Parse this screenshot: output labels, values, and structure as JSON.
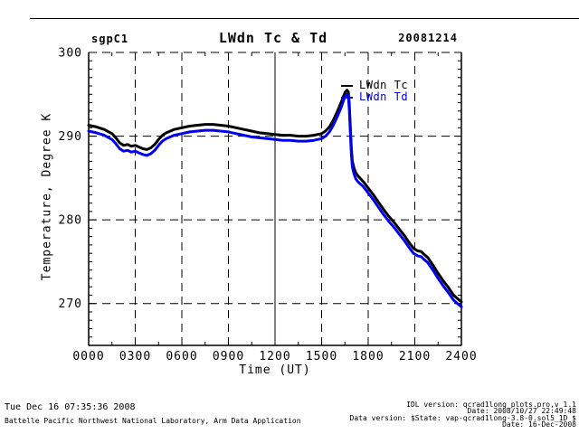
{
  "chart_data": {
    "type": "line",
    "site": "sgpC1",
    "title": "LWdn Tc & Td",
    "date_label": "20081214",
    "xlabel": "Time (UT)",
    "ylabel": "Temperature, Degree K",
    "xlim": [
      0,
      1440
    ],
    "ylim": [
      265,
      300
    ],
    "x_tick_labels": [
      "0000",
      "0300",
      "0600",
      "0900",
      "1200",
      "1500",
      "1800",
      "2100",
      "2400"
    ],
    "x_tick_minutes": [
      0,
      180,
      360,
      540,
      720,
      900,
      1080,
      1260,
      1440
    ],
    "y_ticks": [
      270,
      280,
      290,
      300
    ],
    "x_minor_step": 90,
    "y_minor_step": 1,
    "grid": "dashed",
    "solid_x_gridlines": [
      720
    ],
    "legend_position": "inside-top-right",
    "series": [
      {
        "name": "LWdn Tc",
        "color": "#000000",
        "points": [
          [
            0,
            291.3
          ],
          [
            30,
            291.1
          ],
          [
            60,
            290.8
          ],
          [
            90,
            290.3
          ],
          [
            105,
            289.8
          ],
          [
            120,
            289.2
          ],
          [
            135,
            288.9
          ],
          [
            150,
            289.0
          ],
          [
            165,
            288.8
          ],
          [
            180,
            288.9
          ],
          [
            195,
            288.7
          ],
          [
            210,
            288.5
          ],
          [
            225,
            288.4
          ],
          [
            240,
            288.6
          ],
          [
            255,
            289.0
          ],
          [
            270,
            289.6
          ],
          [
            285,
            290.1
          ],
          [
            300,
            290.4
          ],
          [
            330,
            290.8
          ],
          [
            360,
            291.0
          ],
          [
            390,
            291.2
          ],
          [
            420,
            291.3
          ],
          [
            450,
            291.4
          ],
          [
            480,
            291.4
          ],
          [
            510,
            291.3
          ],
          [
            540,
            291.2
          ],
          [
            570,
            291.0
          ],
          [
            600,
            290.8
          ],
          [
            630,
            290.6
          ],
          [
            660,
            290.4
          ],
          [
            690,
            290.3
          ],
          [
            720,
            290.2
          ],
          [
            750,
            290.1
          ],
          [
            780,
            290.1
          ],
          [
            810,
            290.0
          ],
          [
            840,
            290.0
          ],
          [
            870,
            290.1
          ],
          [
            900,
            290.3
          ],
          [
            915,
            290.6
          ],
          [
            930,
            291.1
          ],
          [
            945,
            291.9
          ],
          [
            960,
            292.9
          ],
          [
            975,
            294.0
          ],
          [
            985,
            294.8
          ],
          [
            992,
            295.3
          ],
          [
            998,
            295.5
          ],
          [
            1003,
            295.3
          ],
          [
            1007,
            293.8
          ],
          [
            1011,
            291.0
          ],
          [
            1015,
            288.5
          ],
          [
            1019,
            287.0
          ],
          [
            1025,
            286.2
          ],
          [
            1032,
            285.6
          ],
          [
            1042,
            285.2
          ],
          [
            1060,
            284.6
          ],
          [
            1080,
            283.8
          ],
          [
            1100,
            283.0
          ],
          [
            1120,
            282.1
          ],
          [
            1140,
            281.2
          ],
          [
            1160,
            280.4
          ],
          [
            1180,
            279.7
          ],
          [
            1200,
            278.9
          ],
          [
            1220,
            278.1
          ],
          [
            1240,
            277.2
          ],
          [
            1255,
            276.6
          ],
          [
            1270,
            276.3
          ],
          [
            1285,
            276.2
          ],
          [
            1295,
            275.9
          ],
          [
            1310,
            275.5
          ],
          [
            1330,
            274.6
          ],
          [
            1350,
            273.6
          ],
          [
            1370,
            272.7
          ],
          [
            1390,
            271.9
          ],
          [
            1410,
            271.0
          ],
          [
            1425,
            270.6
          ],
          [
            1440,
            270.2
          ]
        ]
      },
      {
        "name": "LWdn Td",
        "color": "#0000ee",
        "points": [
          [
            0,
            290.6
          ],
          [
            30,
            290.4
          ],
          [
            60,
            290.1
          ],
          [
            90,
            289.6
          ],
          [
            105,
            289.1
          ],
          [
            120,
            288.5
          ],
          [
            135,
            288.2
          ],
          [
            150,
            288.3
          ],
          [
            165,
            288.1
          ],
          [
            180,
            288.2
          ],
          [
            195,
            288.0
          ],
          [
            210,
            287.8
          ],
          [
            225,
            287.7
          ],
          [
            240,
            287.9
          ],
          [
            255,
            288.3
          ],
          [
            270,
            288.9
          ],
          [
            285,
            289.4
          ],
          [
            300,
            289.7
          ],
          [
            330,
            290.1
          ],
          [
            360,
            290.3
          ],
          [
            390,
            290.5
          ],
          [
            420,
            290.6
          ],
          [
            450,
            290.7
          ],
          [
            480,
            290.7
          ],
          [
            510,
            290.6
          ],
          [
            540,
            290.5
          ],
          [
            570,
            290.3
          ],
          [
            600,
            290.1
          ],
          [
            630,
            289.9
          ],
          [
            660,
            289.8
          ],
          [
            690,
            289.7
          ],
          [
            720,
            289.6
          ],
          [
            750,
            289.5
          ],
          [
            780,
            289.5
          ],
          [
            810,
            289.4
          ],
          [
            840,
            289.4
          ],
          [
            870,
            289.5
          ],
          [
            900,
            289.7
          ],
          [
            915,
            290.0
          ],
          [
            930,
            290.5
          ],
          [
            945,
            291.3
          ],
          [
            960,
            292.3
          ],
          [
            975,
            293.4
          ],
          [
            985,
            294.3
          ],
          [
            992,
            294.8
          ],
          [
            998,
            295.0
          ],
          [
            1003,
            294.8
          ],
          [
            1007,
            293.2
          ],
          [
            1011,
            290.3
          ],
          [
            1015,
            287.8
          ],
          [
            1019,
            286.3
          ],
          [
            1025,
            285.5
          ],
          [
            1032,
            284.9
          ],
          [
            1042,
            284.5
          ],
          [
            1060,
            284.0
          ],
          [
            1080,
            283.2
          ],
          [
            1100,
            282.4
          ],
          [
            1120,
            281.5
          ],
          [
            1140,
            280.6
          ],
          [
            1160,
            279.8
          ],
          [
            1180,
            279.1
          ],
          [
            1200,
            278.3
          ],
          [
            1220,
            277.5
          ],
          [
            1240,
            276.6
          ],
          [
            1255,
            276.0
          ],
          [
            1270,
            275.7
          ],
          [
            1285,
            275.6
          ],
          [
            1295,
            275.3
          ],
          [
            1310,
            274.9
          ],
          [
            1330,
            274.0
          ],
          [
            1350,
            273.0
          ],
          [
            1370,
            272.1
          ],
          [
            1390,
            271.3
          ],
          [
            1410,
            270.4
          ],
          [
            1425,
            270.0
          ],
          [
            1440,
            269.6
          ]
        ]
      }
    ]
  },
  "footer": {
    "left_line1": "Tue Dec 16 07:35:36 2008",
    "left_line2": "Battelle Pacific Northwest National Laboratory, Arm Data Application",
    "right_line1": "IDL version: qcrad1long_plots.pro,v 1.1",
    "right_line2": "Date: 2008/10/27 22:49:48",
    "right_line3": "Data version: $State: vap-qcrad1long-3.8-0.sol5_1D $",
    "right_line4": "Date: 16-Dec-2008"
  }
}
